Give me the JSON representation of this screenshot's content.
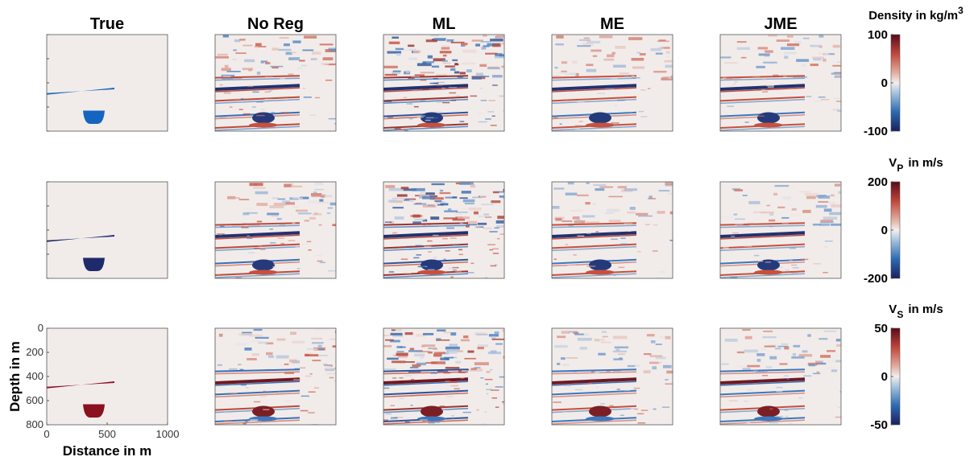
{
  "columns": [
    "True",
    "No Reg",
    "ML",
    "ME",
    "JME"
  ],
  "rows": [
    {
      "label": {
        "main": "Density in kg/m",
        "sup": "3"
      },
      "clim": [
        -100,
        100
      ],
      "ticks": [
        100,
        0,
        -100
      ]
    },
    {
      "label": {
        "main": "V",
        "sub": "P",
        "rest": "in m/s"
      },
      "clim": [
        -200,
        200
      ],
      "ticks": [
        200,
        0,
        -200
      ]
    },
    {
      "label": {
        "main": "V",
        "sub": "S",
        "rest": "in m/s"
      },
      "clim": [
        -50,
        50
      ],
      "ticks": [
        50,
        0,
        -50
      ]
    }
  ],
  "axes": {
    "ylabel": "Depth in m",
    "xlabel": "Distance in m",
    "xlim": [
      0,
      1000
    ],
    "ylim": [
      0,
      800
    ],
    "xticks": [
      0,
      500,
      1000
    ],
    "yticks": [
      0,
      200,
      400,
      600,
      800
    ]
  }
}
